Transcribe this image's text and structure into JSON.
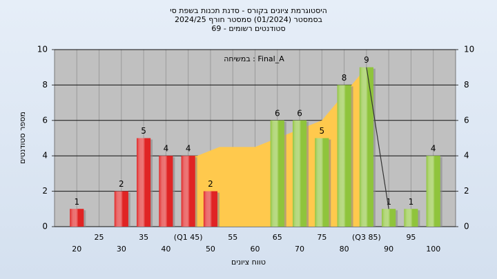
{
  "chart_data": {
    "type": "bar",
    "title": [
      "היסטוגרמת ציונים בקורס - סדנת תכנות בשפת סי",
      "בסמסטר  (01/2024)  סמסטר חורף  2024/25",
      "סטודנטים רשומים - 69"
    ],
    "annotation": "Final_A : במשיחה",
    "x_label": "טווח ציונים",
    "y_label": "מספר סטודנטים",
    "x": [
      20,
      25,
      30,
      35,
      40,
      45,
      50,
      55,
      60,
      65,
      70,
      75,
      80,
      85,
      90,
      95,
      100
    ],
    "values": [
      1,
      0,
      2,
      5,
      4,
      4,
      2,
      0,
      0,
      6,
      6,
      5,
      8,
      9,
      1,
      1,
      4
    ],
    "colors": [
      "#e02424",
      "#e02424",
      "#e02424",
      "#e02424",
      "#e02424",
      "#e02424",
      "#e02424",
      "#e02424",
      "#e02424",
      "#8fc43c",
      "#8fc43c",
      "#8fc43c",
      "#8fc43c",
      "#8fc43c",
      "#8fc43c",
      "#8fc43c",
      "#8fc43c"
    ],
    "area": {
      "color": "#ffc94d",
      "x": [
        45,
        47,
        52,
        60,
        65,
        75,
        80,
        85
      ],
      "values": [
        4,
        4,
        4.5,
        4.5,
        5,
        6,
        7.5,
        9
      ]
    },
    "line": {
      "color": "#333333",
      "x": [
        85,
        90
      ],
      "values": [
        9,
        1
      ]
    },
    "xlim": [
      15,
      105
    ],
    "xticks": [
      20,
      25,
      30,
      35,
      40,
      {
        "value": 45,
        "label": "(Q1 45)"
      },
      50,
      55,
      60,
      65,
      70,
      75,
      80,
      {
        "value": 85,
        "label": "(Q3 85)"
      },
      90,
      95,
      100
    ],
    "ylim": [
      0,
      10
    ],
    "yticks": [
      0,
      2,
      4,
      6,
      8,
      10
    ],
    "y2lim": [
      0,
      10
    ],
    "y2ticks": [
      0,
      2,
      4,
      6,
      8,
      10
    ],
    "grid": true
  }
}
